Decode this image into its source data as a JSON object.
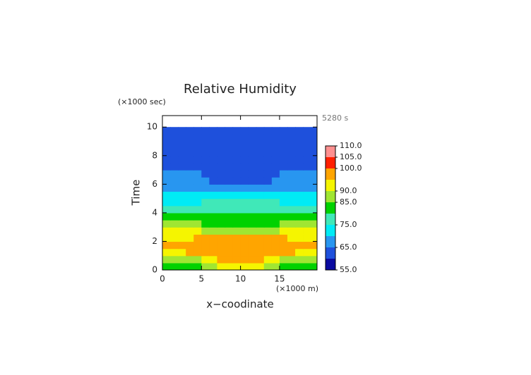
{
  "chart_data": {
    "type": "contour",
    "title": "Relative Humidity",
    "xlabel": "x−coodinate",
    "ylabel": "Time",
    "xunit": "(×1000 m)",
    "yunit": "(×1000 sec)",
    "annotation": "5280 s",
    "x": [
      0.5,
      1.5,
      2.5,
      3.5,
      4.5,
      5.5,
      6.5,
      7.5,
      8.5,
      9.5,
      10.5,
      11.5,
      12.5,
      13.5,
      14.5,
      15.5,
      16.5,
      17.5,
      18.5,
      19.5
    ],
    "y": [
      0.25,
      0.75,
      1.25,
      1.75,
      2.25,
      2.75,
      3.25,
      3.75,
      4.25,
      4.75,
      5.25,
      5.75,
      6.25,
      6.75,
      7.25,
      7.75,
      8.25,
      8.75,
      9.25,
      9.75
    ],
    "z": [
      [
        82,
        82,
        82,
        83,
        84,
        86,
        88,
        91,
        92,
        92,
        92,
        92,
        91,
        88,
        86,
        84,
        83,
        82,
        82,
        82
      ],
      [
        87,
        87,
        87,
        88,
        89,
        91,
        93,
        96,
        97,
        97,
        97,
        97,
        96,
        93,
        91,
        89,
        88,
        87,
        87,
        87
      ],
      [
        93,
        93,
        94,
        95,
        96,
        97,
        97,
        97,
        97,
        97,
        97,
        97,
        97,
        97,
        97,
        96,
        95,
        94,
        93,
        93
      ],
      [
        96,
        96,
        96,
        97,
        97,
        97,
        97,
        97,
        97,
        97,
        97,
        97,
        97,
        97,
        97,
        97,
        97,
        96,
        96,
        96
      ],
      [
        93,
        93,
        94,
        94,
        95,
        96,
        96,
        96,
        96,
        96,
        96,
        96,
        96,
        96,
        96,
        95,
        94,
        94,
        93,
        93
      ],
      [
        91,
        91,
        91,
        90,
        90,
        89,
        88,
        87,
        86,
        86,
        86,
        86,
        87,
        88,
        89,
        90,
        90,
        91,
        91,
        91
      ],
      [
        86,
        86,
        86,
        86,
        85,
        84,
        83,
        82,
        82,
        82,
        82,
        82,
        82,
        83,
        84,
        85,
        86,
        86,
        86,
        86
      ],
      [
        81,
        81,
        81,
        81,
        81,
        82,
        82,
        82,
        82,
        82,
        82,
        82,
        82,
        82,
        82,
        81,
        81,
        81,
        81,
        81
      ],
      [
        78,
        78,
        78,
        78,
        77,
        77,
        77,
        77,
        77,
        77,
        77,
        77,
        77,
        77,
        77,
        77,
        78,
        78,
        78,
        78
      ],
      [
        72,
        72,
        73,
        73,
        74,
        75,
        76,
        76,
        76,
        76,
        76,
        76,
        76,
        76,
        75,
        74,
        73,
        73,
        72,
        72
      ],
      [
        71,
        71,
        71,
        71,
        71,
        72,
        72,
        72,
        72,
        72,
        72,
        72,
        72,
        72,
        72,
        71,
        71,
        71,
        71,
        71
      ],
      [
        67,
        67,
        67,
        67,
        67,
        67,
        67,
        67,
        67,
        67,
        67,
        67,
        67,
        67,
        67,
        67,
        67,
        67,
        67,
        67
      ],
      [
        67,
        67,
        67,
        67,
        67,
        66,
        64,
        63,
        62,
        62,
        62,
        62,
        63,
        64,
        66,
        67,
        67,
        67,
        67,
        67
      ],
      [
        67,
        67,
        67,
        67,
        67,
        64,
        62,
        62,
        62,
        62,
        62,
        62,
        62,
        62,
        64,
        67,
        67,
        67,
        67,
        67
      ],
      [
        62,
        62,
        62,
        62,
        62,
        62,
        62,
        62,
        62,
        62,
        62,
        62,
        62,
        62,
        62,
        62,
        62,
        62,
        62,
        62
      ],
      [
        62,
        62,
        62,
        62,
        62,
        62,
        62,
        62,
        62,
        62,
        62,
        62,
        62,
        62,
        62,
        62,
        62,
        62,
        62,
        62
      ],
      [
        62,
        62,
        62,
        62,
        62,
        62,
        62,
        62,
        62,
        62,
        62,
        62,
        62,
        62,
        62,
        62,
        62,
        62,
        62,
        62
      ],
      [
        62,
        62,
        62,
        62,
        62,
        62,
        62,
        62,
        62,
        62,
        62,
        62,
        62,
        62,
        62,
        62,
        62,
        62,
        62,
        62
      ],
      [
        62,
        62,
        62,
        62,
        62,
        62,
        62,
        62,
        62,
        62,
        62,
        62,
        62,
        62,
        62,
        62,
        62,
        62,
        62,
        62
      ],
      [
        62,
        62,
        62,
        62,
        62,
        62,
        62,
        62,
        62,
        62,
        62,
        62,
        62,
        62,
        62,
        62,
        62,
        62,
        62,
        62
      ]
    ],
    "levels": [
      55,
      60,
      65,
      70,
      75,
      80,
      85,
      90,
      95,
      100,
      105,
      110
    ],
    "colors": [
      "#0a0aa0",
      "#1e50dc",
      "#2896f0",
      "#00ebf5",
      "#40e8b8",
      "#00d200",
      "#a0e632",
      "#f5f500",
      "#ffa500",
      "#ff2000",
      "#ff9090"
    ],
    "xlim": [
      0,
      19.8
    ],
    "ylim": [
      0,
      10.8
    ],
    "xticks": [
      0,
      5,
      10,
      15
    ],
    "yticks": [
      0,
      2,
      4,
      6,
      8,
      10
    ],
    "colorbar_ticks": [
      {
        "value": 55,
        "label": "55.0"
      },
      {
        "value": 65,
        "label": "65.0"
      },
      {
        "value": 75,
        "label": "75.0"
      },
      {
        "value": 85,
        "label": "85.0"
      },
      {
        "value": 90,
        "label": "90.0"
      },
      {
        "value": 100,
        "label": "100.0"
      },
      {
        "value": 105,
        "label": "105.0"
      },
      {
        "value": 110,
        "label": "110.0"
      }
    ]
  }
}
